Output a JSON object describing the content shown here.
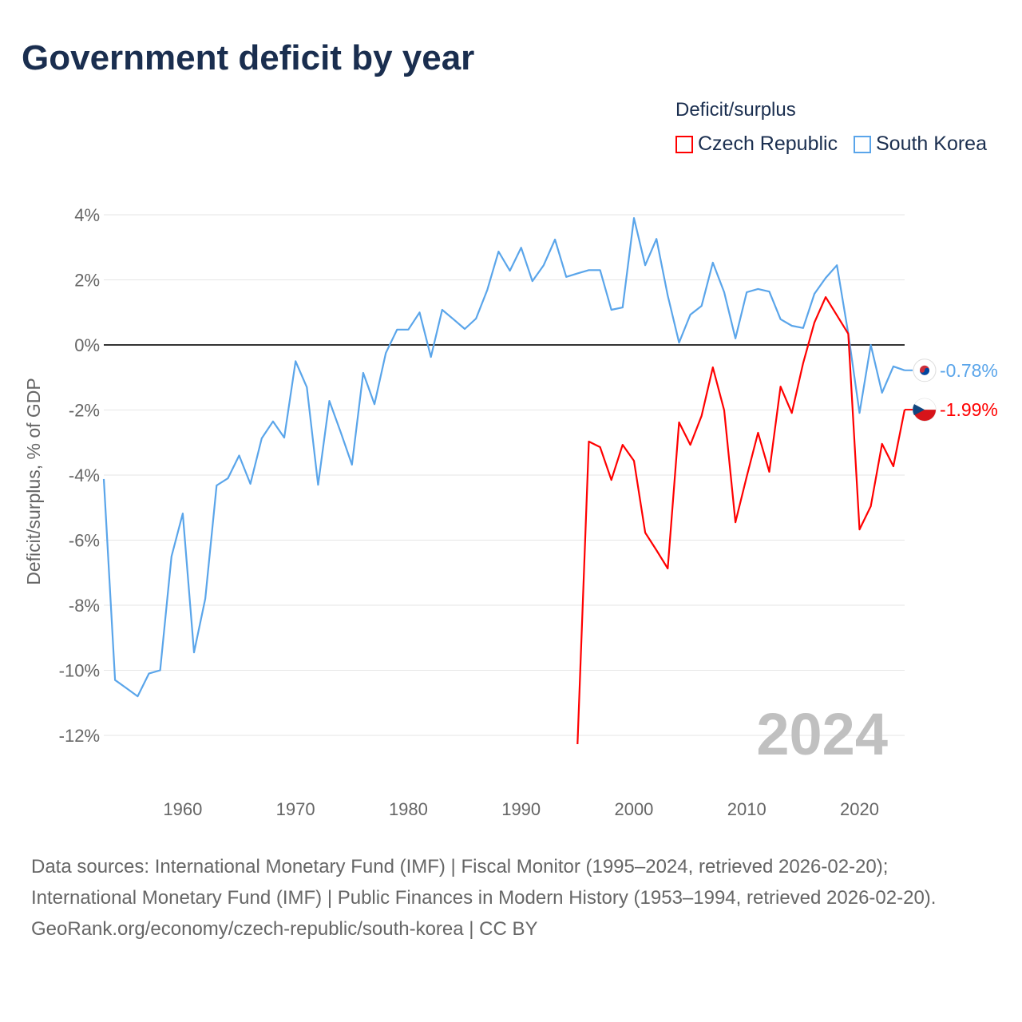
{
  "title": "Government deficit by year",
  "legend": {
    "title": "Deficit/surplus",
    "items": [
      {
        "label": "Czech Republic",
        "color": "#ff0000"
      },
      {
        "label": "South Korea",
        "color": "#5aa5ea"
      }
    ]
  },
  "footer": {
    "sources": "Data sources: International Monetary Fund (IMF) | Fiscal Monitor (1995–2024, retrieved 2026-02-20); International Monetary Fund (IMF) | Public Finances in Modern History (1953–1994, retrieved 2026-02-20).",
    "link": "GeoRank.org/economy/czech-republic/south-korea | CC BY"
  },
  "chart_data": {
    "type": "line",
    "title": "Government deficit by year",
    "xlabel": "",
    "ylabel": "Deficit/surplus, % of GDP",
    "xlim": [
      1953,
      2024
    ],
    "ylim": [
      -13,
      4.5
    ],
    "yticks": [
      4,
      2,
      0,
      -2,
      -4,
      -6,
      -8,
      -10,
      -12
    ],
    "ytick_labels": [
      "4%",
      "2%",
      "0%",
      "-2%",
      "-4%",
      "-6%",
      "-8%",
      "-10%",
      "-12%"
    ],
    "xticks": [
      1960,
      1970,
      1980,
      1990,
      2000,
      2010,
      2020
    ],
    "xtick_labels": [
      "1960",
      "1970",
      "1980",
      "1990",
      "2000",
      "2010",
      "2020"
    ],
    "watermark_year": "2024",
    "grid": true,
    "legend_position": "top-right",
    "series": [
      {
        "name": "South Korea",
        "color": "#5aa5ea",
        "start_year": 1953,
        "end_label": "-0.78%",
        "values": [
          -4.12,
          -10.3,
          -10.55,
          -10.8,
          -10.1,
          -10.0,
          -6.5,
          -5.18,
          -9.45,
          -7.8,
          -4.32,
          -4.1,
          -3.4,
          -4.27,
          -2.87,
          -2.35,
          -2.85,
          -0.5,
          -1.3,
          -4.3,
          -1.72,
          -2.68,
          -3.68,
          -0.86,
          -1.82,
          -0.25,
          0.47,
          0.47,
          1.0,
          -0.37,
          1.08,
          0.79,
          0.49,
          0.81,
          1.69,
          2.87,
          2.28,
          2.99,
          1.96,
          2.45,
          3.24,
          2.09,
          2.2,
          2.3,
          2.3,
          1.08,
          1.15,
          3.9,
          2.45,
          3.26,
          1.52,
          0.07,
          0.93,
          1.2,
          2.53,
          1.62,
          0.2,
          1.62,
          1.72,
          1.64,
          0.79,
          0.59,
          0.52,
          1.57,
          2.06,
          2.45,
          0.35,
          -2.09,
          0.0,
          -1.47,
          -0.66,
          -0.78
        ]
      },
      {
        "name": "Czech Republic",
        "color": "#ff0000",
        "start_year": 1995,
        "end_label": "-1.99%",
        "values": [
          -12.27,
          -2.97,
          -3.14,
          -4.15,
          -3.07,
          -3.56,
          -5.77,
          -6.31,
          -6.87,
          -2.38,
          -3.07,
          -2.18,
          -0.69,
          -2.01,
          -5.45,
          -4.05,
          -2.7,
          -3.9,
          -1.28,
          -2.09,
          -0.56,
          0.69,
          1.47,
          0.91,
          0.34,
          -5.67,
          -4.96,
          -3.04,
          -3.73,
          -1.99
        ]
      }
    ]
  }
}
